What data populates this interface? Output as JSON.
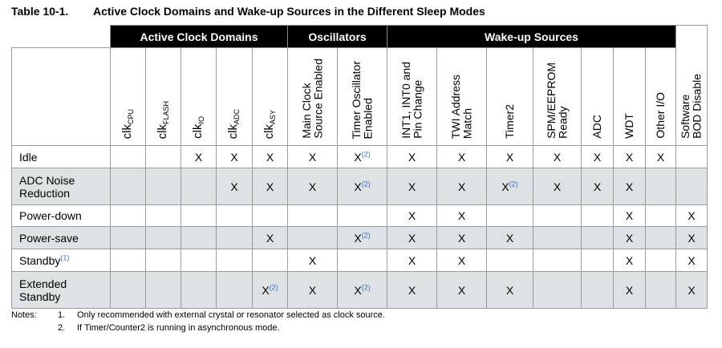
{
  "caption": {
    "number": "Table 10-1.",
    "title": "Active Clock Domains and Wake-up Sources in the Different Sleep Modes"
  },
  "groups": {
    "clock": "Active Clock Domains",
    "osc": "Oscillators",
    "wake": "Wake-up Sources"
  },
  "columns": {
    "clk_cpu": {
      "base": "clk",
      "sub": "CPU"
    },
    "clk_flash": {
      "base": "clk",
      "sub": "FLASH"
    },
    "clk_io": {
      "base": "clk",
      "sub": "IO"
    },
    "clk_adc": {
      "base": "clk",
      "sub": "ADC"
    },
    "clk_asy": {
      "base": "clk",
      "sub": "ASY"
    },
    "main_clock": [
      "Main Clock",
      "Source Enabled"
    ],
    "timer_osc": [
      "Timer Oscillator",
      "Enabled"
    ],
    "int": [
      "INT1, INT0 and",
      "Pin Change"
    ],
    "twi": [
      "TWI Address",
      "Match"
    ],
    "timer2": "Timer2",
    "spm": [
      "SPM/EEPROM",
      "Ready"
    ],
    "adc": "ADC",
    "wdt": "WDT",
    "other_io": "Other I/O",
    "bod": [
      "Software",
      "BOD Disable"
    ]
  },
  "mark": "X",
  "footnote_ref": "(2)",
  "footnote_ref_1": "(1)",
  "rows": [
    {
      "name": "Idle",
      "cells": [
        "",
        "",
        "X",
        "X",
        "X",
        "X",
        "X(2)",
        "X",
        "X",
        "X",
        "X",
        "X",
        "X",
        "X",
        ""
      ]
    },
    {
      "name": [
        "ADC Noise",
        "Reduction"
      ],
      "cells": [
        "",
        "",
        "",
        "X",
        "X",
        "X",
        "X(2)",
        "X",
        "X",
        "X(2)",
        "X",
        "X",
        "X",
        "",
        ""
      ]
    },
    {
      "name": "Power-down",
      "cells": [
        "",
        "",
        "",
        "",
        "",
        "",
        "",
        "X",
        "X",
        "",
        "",
        "",
        "X",
        "",
        "X"
      ]
    },
    {
      "name": "Power-save",
      "cells": [
        "",
        "",
        "",
        "",
        "X",
        "",
        "X(2)",
        "X",
        "X",
        "X",
        "",
        "",
        "X",
        "",
        "X"
      ]
    },
    {
      "name": "Standby(1)",
      "cells": [
        "",
        "",
        "",
        "",
        "",
        "X",
        "",
        "X",
        "X",
        "",
        "",
        "",
        "X",
        "",
        "X"
      ]
    },
    {
      "name": [
        "Extended",
        "Standby"
      ],
      "cells": [
        "",
        "",
        "",
        "",
        "X(2)",
        "X",
        "X(2)",
        "X",
        "X",
        "X",
        "",
        "",
        "X",
        "",
        "X"
      ]
    }
  ],
  "notes": {
    "label": "Notes:",
    "items": [
      {
        "num": "1.",
        "text": "Only recommended with external crystal or resonator selected as clock source."
      },
      {
        "num": "2.",
        "text": "If Timer/Counter2 is running in asynchronous mode."
      }
    ]
  }
}
